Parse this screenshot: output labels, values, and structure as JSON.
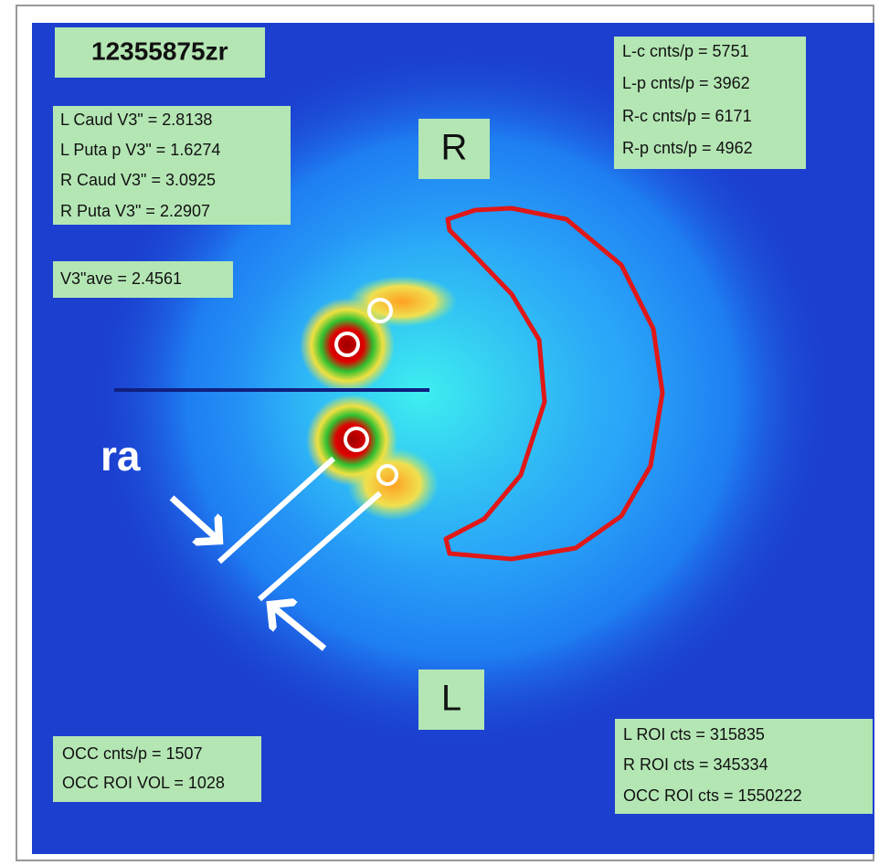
{
  "id_label": "12355875zr",
  "orientation": {
    "top": "R",
    "bottom": "L"
  },
  "v3_values": [
    "L Caud V3\" =  2.8138",
    "L Puta  p V3\" =  1.6274",
    "R Caud V3\" =  3.0925",
    "R Puta V3\" =  2.2907"
  ],
  "v3_average": "V3\"ave =  2.4561",
  "counts_per_pixel": [
    "L-c cnts/p =  5751",
    "L-p cnts/p =  3962",
    "R-c cnts/p =  6171",
    "R-p cnts/p =  4962"
  ],
  "occipital": [
    "OCC cnts/p =  1507",
    "OCC ROI VOL =  1028"
  ],
  "roi_counts": [
    "L ROI cts =  315835",
    "R ROI cts =  345334",
    "OCC ROI cts =  1550222"
  ],
  "annotation": "ra"
}
